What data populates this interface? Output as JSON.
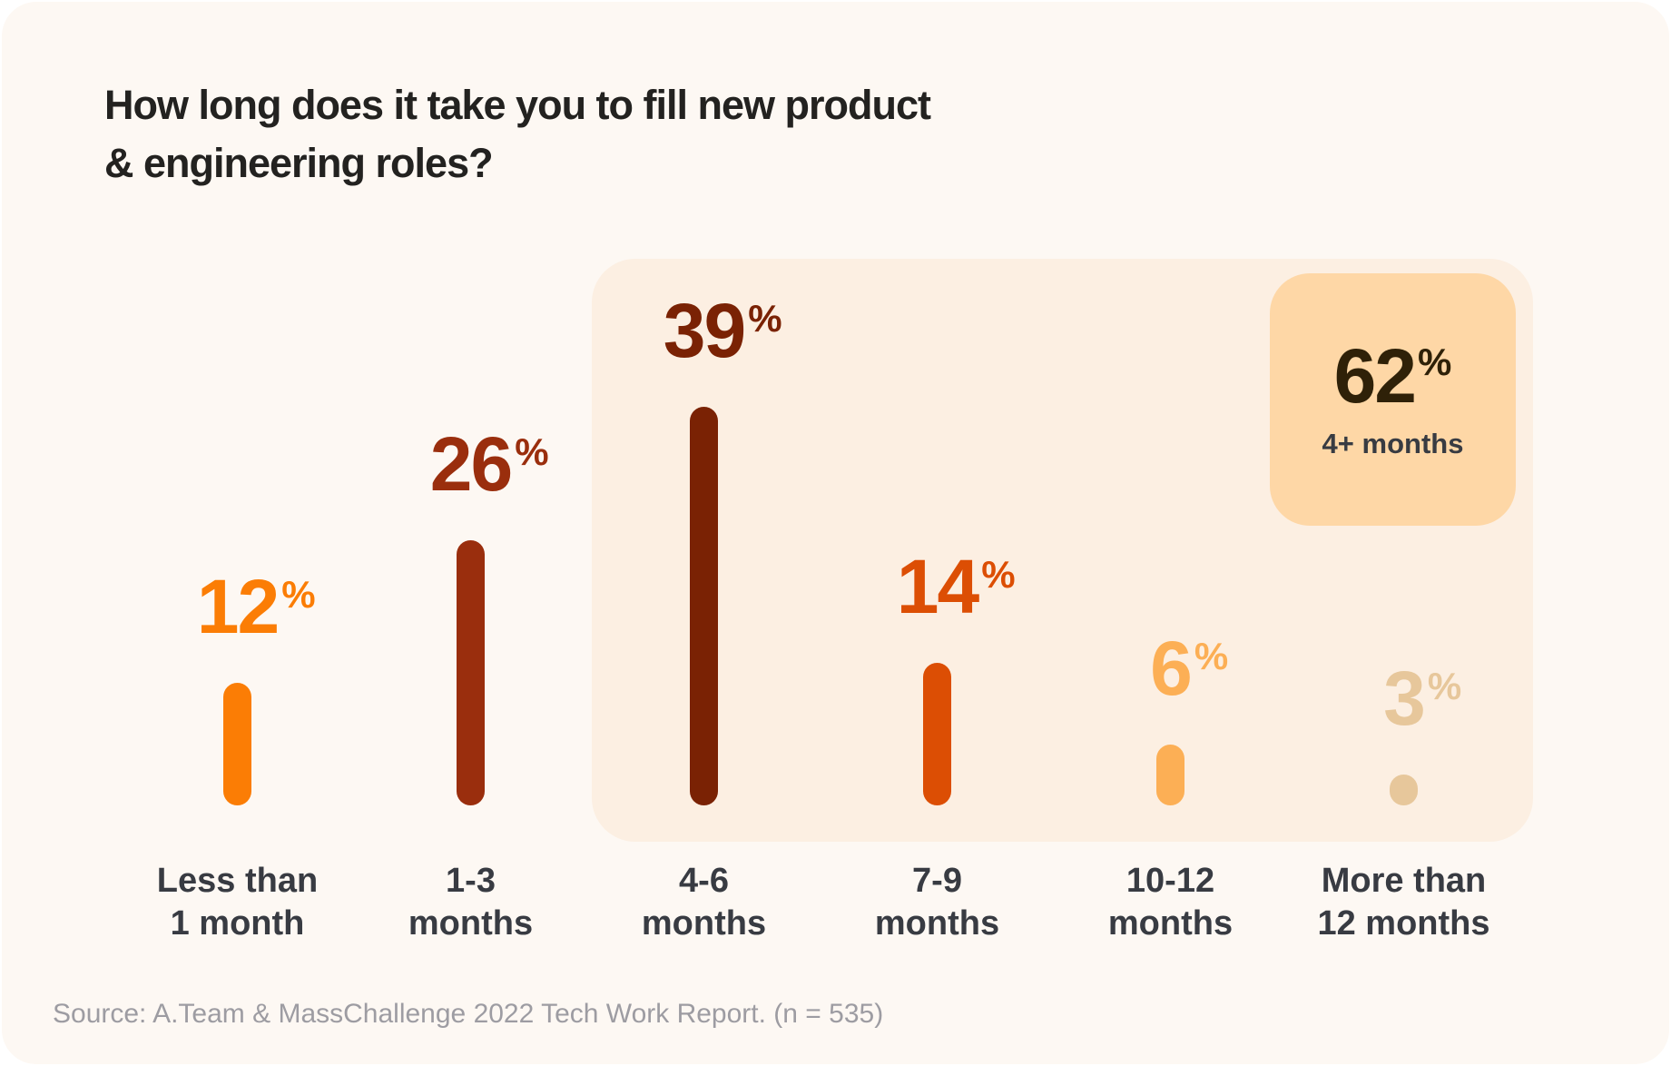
{
  "page": {
    "title": {
      "line1": "How long does it take you to fill new product",
      "line2": "& engineering roles?"
    },
    "source": "Source: A.Team & MassChallenge 2022 Tech Work Report. (n = 535)"
  },
  "callout": {
    "value": "62",
    "suffix": "%",
    "label": "4+ months"
  },
  "colors": {
    "page_bg": "#FFFFFF",
    "card_bg": "#FDF8F3",
    "highlight_bg": "#FCEFE2",
    "callout_bg": "#FED7A6",
    "callout_value": "#2F2108",
    "title_text": "#232220",
    "category_text": "#383B42",
    "source_text": "#9D9CA2"
  },
  "chart_data": {
    "type": "bar",
    "title": "How long does it take you to fill new product & engineering roles?",
    "unit": "%",
    "categories": [
      "Less than 1 month",
      "1-3 months",
      "4-6 months",
      "7-9 months",
      "10-12 months",
      "More than 12 months"
    ],
    "category_label_lines": [
      [
        "Less than",
        "1 month"
      ],
      [
        "1-3",
        "months"
      ],
      [
        "4-6",
        "months"
      ],
      [
        "7-9",
        "months"
      ],
      [
        "10-12",
        "months"
      ],
      [
        "More than",
        "12 months"
      ]
    ],
    "values": [
      12,
      26,
      39,
      14,
      6,
      3
    ],
    "bar_colors": [
      "#FB7D05",
      "#9A2E0D",
      "#7A2204",
      "#DC4E04",
      "#FCAF55",
      "#E7C79B"
    ],
    "highlight_group": {
      "value": 62,
      "label": "4+ months",
      "covers_categories": [
        "4-6 months",
        "7-9 months",
        "10-12 months",
        "More than 12 months"
      ]
    },
    "axes": "none",
    "legend": "none",
    "source": "Source: A.Team & MassChallenge 2022 Tech Work Report. (n = 535)"
  }
}
